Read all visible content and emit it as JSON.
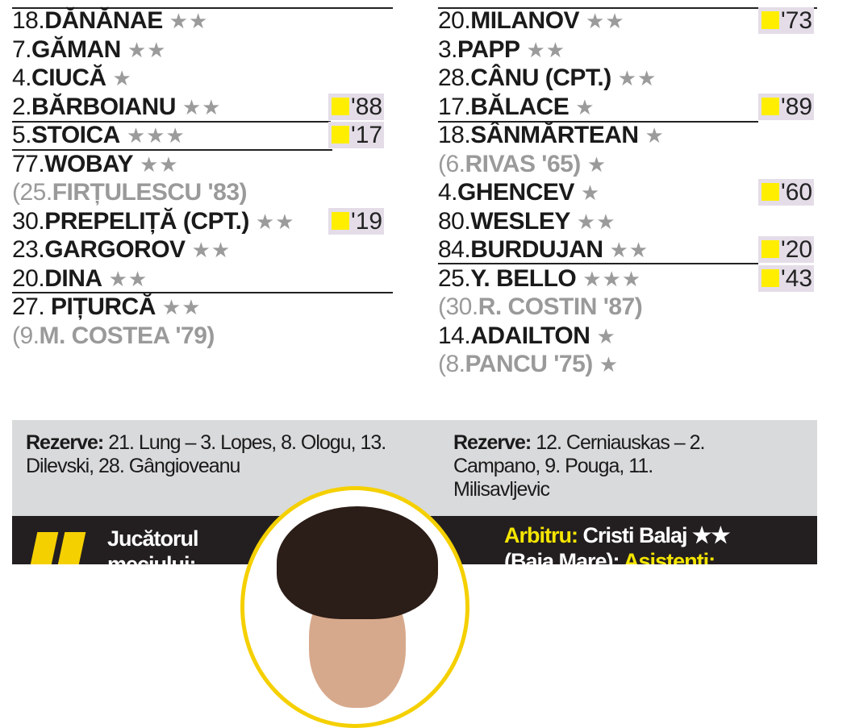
{
  "home": {
    "players": [
      {
        "num": "18.",
        "name": "DĂNĂNAE",
        "stars": "★★"
      },
      {
        "num": "7.",
        "name": "GĂMAN",
        "stars": "★★"
      },
      {
        "num": "4.",
        "name": "CIUCĂ",
        "stars": "★"
      },
      {
        "num": "2.",
        "name": "BĂRBOIANU",
        "stars": "★★",
        "card": "'88"
      },
      {
        "num": "5.",
        "name": "STOICA",
        "stars": "★★★",
        "card": "'17"
      },
      {
        "num": "77.",
        "name": "WOBAY",
        "stars": "★★"
      },
      {
        "num": "(25.",
        "name": "FIRȚULESCU '83)",
        "stars": "",
        "sub": true
      },
      {
        "num": "30.",
        "name": "PREPELIȚĂ (CPT.)",
        "stars": "★★",
        "card": "'19"
      },
      {
        "num": "23.",
        "name": "GARGOROV",
        "stars": "★★"
      },
      {
        "num": "20.",
        "name": "DINA",
        "stars": "★★"
      },
      {
        "num": "27. ",
        "name": "PIȚURCĂ",
        "stars": "★★"
      },
      {
        "num": "(9.",
        "name": "M. COSTEA '79)",
        "stars": "",
        "sub": true
      }
    ],
    "reserves_label": "Rezerve:",
    "reserves": "21. Lung – 3. Lopes, 8. Ologu, 13. Dilevski, 28. Gângioveanu"
  },
  "away": {
    "players": [
      {
        "num": "20.",
        "name": "MILANOV",
        "stars": "★★",
        "card": "'73"
      },
      {
        "num": "3.",
        "name": "PAPP",
        "stars": "★★"
      },
      {
        "num": "28.",
        "name": "CÂNU (CPT.)",
        "stars": "★★"
      },
      {
        "num": "17.",
        "name": "BĂLACE",
        "stars": "★",
        "card": "'89"
      },
      {
        "num": "18.",
        "name": "SÂNMĂRTEAN",
        "stars": "★"
      },
      {
        "num": "(6.",
        "name": "RIVAS '65)",
        "stars": "★",
        "sub": true
      },
      {
        "num": "4.",
        "name": "GHENCEV",
        "stars": "★",
        "card": "'60"
      },
      {
        "num": "80.",
        "name": "WESLEY",
        "stars": "★★"
      },
      {
        "num": "84.",
        "name": "BURDUJAN",
        "stars": "★★",
        "card": "'20"
      },
      {
        "num": "25.",
        "name": "Y. BELLO",
        "stars": "★★★",
        "card": "'43"
      },
      {
        "num": "(30.",
        "name": "R. COSTIN '87)",
        "stars": "",
        "sub": true
      },
      {
        "num": "14.",
        "name": "ADAILTON",
        "stars": "★"
      },
      {
        "num": "(8.",
        "name": "PANCU '75)",
        "stars": "★",
        "sub": true
      }
    ],
    "reserves_label": "Rezerve:",
    "reserves": "12. Cerniauskas – 2. Campano, 9. Pouga, 11. Milisavljevic"
  },
  "footer": {
    "player_of_match": "Jucătorul meciului:",
    "referee_label": "Arbitru:",
    "referee": "Cristi Balaj ★★",
    "referee_city": "(Baia Mare);",
    "assistants_label": "Asistenți:"
  },
  "colors": {
    "card": "#ffee00",
    "card_bg": "#e4dde8",
    "accent": "#f5d000",
    "footer_bg": "#231f20",
    "reserves_bg": "#d9dadb"
  }
}
